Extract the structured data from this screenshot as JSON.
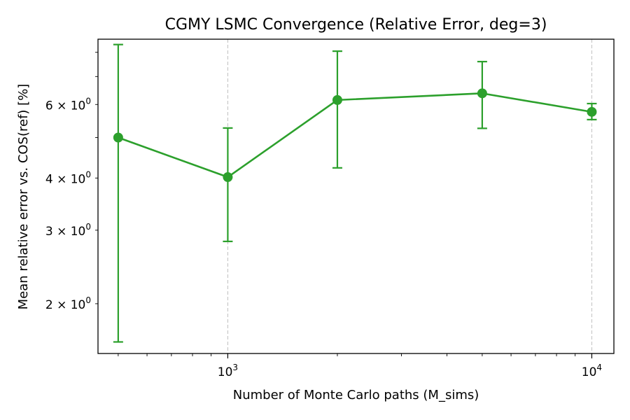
{
  "chart_data": {
    "type": "line",
    "title": "CGMY LSMC Convergence (Relative Error, deg=3)",
    "xlabel": "Number of Monte Carlo paths (M_sims)",
    "ylabel": "Mean relative error vs. COS(ref) [%]",
    "x_scale": "log",
    "y_scale": "log",
    "xlim": [
      440,
      11500
    ],
    "ylim": [
      1.52,
      8.6
    ],
    "x_major_ticks": [
      {
        "value": 1000,
        "base": "10",
        "exp": "3"
      },
      {
        "value": 10000,
        "base": "10",
        "exp": "4"
      }
    ],
    "y_labeled_ticks": [
      {
        "value": 2,
        "label": "2 × 10",
        "exp": "0"
      },
      {
        "value": 3,
        "label": "3 × 10",
        "exp": "0"
      },
      {
        "value": 4,
        "label": "4 × 10",
        "exp": "0"
      },
      {
        "value": 6,
        "label": "6 × 10",
        "exp": "0"
      }
    ],
    "grid": "vertical dashed at x major ticks",
    "series": [
      {
        "color": "#2ca02c",
        "marker": "circle",
        "x": [
          500,
          1000,
          2000,
          5000,
          10000
        ],
        "y": [
          5.0,
          4.02,
          6.15,
          6.38,
          5.76
        ],
        "err_low": [
          1.62,
          2.82,
          4.23,
          5.26,
          5.52
        ],
        "err_high": [
          8.35,
          5.27,
          8.05,
          7.6,
          6.03
        ]
      }
    ]
  }
}
